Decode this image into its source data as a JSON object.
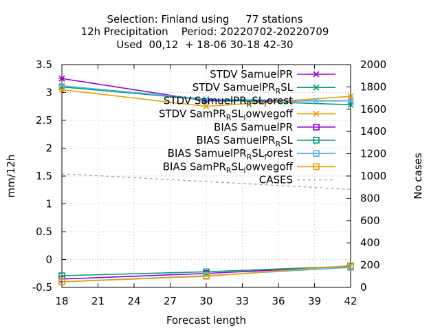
{
  "title_lines": [
    "Selection: Finland using     77 stations",
    "12h Precipitation    Period: 20220702-20220709",
    "Used  00,12  + 18-06 30-18 42-30"
  ],
  "chart_data": {
    "type": "line",
    "x": [
      18,
      30,
      42
    ],
    "xlabel": "Forecast length",
    "ylabel": "mm/12h",
    "y2label": "No cases",
    "xlim": [
      18,
      42
    ],
    "ylim": [
      -0.5,
      3.5
    ],
    "y2lim": [
      0,
      2000
    ],
    "xticks": [
      "18",
      "21",
      "24",
      "27",
      "30",
      "33",
      "36",
      "39",
      "42"
    ],
    "yticks": [
      "-0.5",
      "0",
      "0.5",
      "1",
      "1.5",
      "2",
      "2.5",
      "3",
      "3.5"
    ],
    "y2ticks": [
      "0",
      "200",
      "400",
      "600",
      "800",
      "1000",
      "1200",
      "1400",
      "1600",
      "1800",
      "2000"
    ],
    "grid": true,
    "legend_position": "top-right",
    "series": [
      {
        "name": "STDV SamuelPR",
        "legend_parts": [
          [
            "STDV SamuelPR",
            ""
          ]
        ],
        "values": [
          3.25,
          2.85,
          2.85
        ],
        "axis": "y",
        "color": "#9400d3",
        "marker": "x",
        "dash": false
      },
      {
        "name": "STDV SamuelPR_RSL",
        "legend_parts": [
          [
            "STDV SamuelPR",
            ""
          ],
          [
            "R",
            "sub"
          ],
          [
            "SL",
            ""
          ]
        ],
        "values": [
          3.1,
          2.87,
          2.78
        ],
        "axis": "y",
        "color": "#009e73",
        "marker": "x",
        "dash": false
      },
      {
        "name": "STDV SamuelPR_RSL_forest",
        "legend_parts": [
          [
            "STDV SamuelPR",
            ""
          ],
          [
            "R",
            "sub"
          ],
          [
            "SL",
            ""
          ],
          [
            "f",
            "sub"
          ],
          [
            "orest",
            ""
          ]
        ],
        "values": [
          3.12,
          2.88,
          2.85
        ],
        "axis": "y",
        "color": "#56b4e9",
        "marker": "x",
        "dash": false
      },
      {
        "name": "STDV SamPR_RSL_lowvegoff",
        "legend_parts": [
          [
            "STDV SamPR",
            ""
          ],
          [
            "R",
            "sub"
          ],
          [
            "SL",
            ""
          ],
          [
            "l",
            "sub"
          ],
          [
            "owvegoff",
            ""
          ]
        ],
        "values": [
          3.05,
          2.75,
          2.93
        ],
        "axis": "y",
        "color": "#e69f00",
        "marker": "x",
        "dash": false
      },
      {
        "name": "BIAS SamuelPR",
        "legend_parts": [
          [
            "BIAS SamuelPR",
            ""
          ]
        ],
        "values": [
          -0.35,
          -0.25,
          -0.12
        ],
        "axis": "y",
        "color": "#9400d3",
        "marker": "square",
        "dash": false
      },
      {
        "name": "BIAS SamuelPR_RSL",
        "legend_parts": [
          [
            "BIAS SamuelPR",
            ""
          ],
          [
            "R",
            "sub"
          ],
          [
            "SL",
            ""
          ]
        ],
        "values": [
          -0.29,
          -0.22,
          -0.12
        ],
        "axis": "y",
        "color": "#009e73",
        "marker": "square",
        "dash": false
      },
      {
        "name": "BIAS SamuelPR_RSL_forest",
        "legend_parts": [
          [
            "BIAS SamuelPR",
            ""
          ],
          [
            "R",
            "sub"
          ],
          [
            "SL",
            ""
          ],
          [
            "f",
            "sub"
          ],
          [
            "orest",
            ""
          ]
        ],
        "values": [
          -0.4,
          -0.29,
          -0.14
        ],
        "axis": "y",
        "color": "#56b4e9",
        "marker": "square",
        "dash": false
      },
      {
        "name": "BIAS SamPR_RSL_lowvegoff",
        "legend_parts": [
          [
            "BIAS SamPR",
            ""
          ],
          [
            "R",
            "sub"
          ],
          [
            "SL",
            ""
          ],
          [
            "l",
            "sub"
          ],
          [
            "owvegoff",
            ""
          ]
        ],
        "values": [
          -0.4,
          -0.3,
          -0.11
        ],
        "axis": "y",
        "color": "#e69f00",
        "marker": "square",
        "dash": false
      },
      {
        "name": "CASES",
        "legend_parts": [
          [
            "CASES",
            ""
          ]
        ],
        "values": [
          1020,
          950,
          880
        ],
        "axis": "y2",
        "color": "#a0a0a0",
        "marker": "none",
        "dash": true
      }
    ]
  }
}
